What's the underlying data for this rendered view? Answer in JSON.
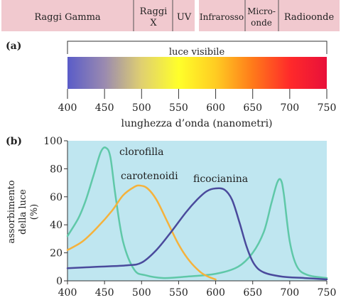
{
  "spectrum_bar": {
    "segments": [
      {
        "lines": [
          "Raggi Gamma"
        ]
      },
      {
        "lines": [
          "Raggi",
          "X"
        ]
      },
      {
        "lines": [
          "UV"
        ]
      },
      {
        "lines": [
          "Infrarosso"
        ]
      },
      {
        "lines": [
          "Micro-",
          "onde"
        ]
      },
      {
        "lines": [
          "Radioonde"
        ]
      }
    ],
    "fill_color": "#f1c9cf"
  },
  "panel_a": {
    "label": "(a)",
    "visible_label": "luce visibile",
    "axis_title": "lunghezza d’onda (nanometri)",
    "tick_labels": [
      "400",
      "450",
      "500",
      "550",
      "600",
      "650",
      "700",
      "750"
    ],
    "gradient_colors": [
      "#5a5cc8",
      "#9a8ab0",
      "#e0d070",
      "#ffff2a",
      "#ffcc22",
      "#ff7a1a",
      "#ff2a2a",
      "#e8103a"
    ]
  },
  "panel_b": {
    "label": "(b)",
    "y_axis_title_lines": [
      "assorbimento",
      "della luce",
      "(%)"
    ],
    "plot_background": "#bfe6f0"
  },
  "chart_data": {
    "type": "line",
    "xlim": [
      400,
      750
    ],
    "ylim": [
      0,
      100
    ],
    "x_ticks": [
      400,
      450,
      500,
      550,
      600,
      650,
      700,
      750
    ],
    "y_ticks": [
      0,
      20,
      40,
      60,
      80,
      100
    ],
    "series": [
      {
        "name": "clorofilla",
        "color": "#5fc8a8",
        "points": [
          [
            400,
            32
          ],
          [
            415,
            45
          ],
          [
            425,
            58
          ],
          [
            435,
            75
          ],
          [
            445,
            92
          ],
          [
            452,
            95
          ],
          [
            458,
            88
          ],
          [
            465,
            60
          ],
          [
            475,
            28
          ],
          [
            490,
            8
          ],
          [
            505,
            4
          ],
          [
            530,
            2
          ],
          [
            560,
            3
          ],
          [
            600,
            5
          ],
          [
            630,
            10
          ],
          [
            650,
            20
          ],
          [
            665,
            35
          ],
          [
            675,
            55
          ],
          [
            683,
            70
          ],
          [
            688,
            72
          ],
          [
            692,
            62
          ],
          [
            700,
            28
          ],
          [
            710,
            10
          ],
          [
            725,
            4
          ],
          [
            750,
            2
          ]
        ]
      },
      {
        "name": "carotenoidi",
        "color": "#f5b23c",
        "points": [
          [
            400,
            22
          ],
          [
            420,
            28
          ],
          [
            440,
            38
          ],
          [
            460,
            50
          ],
          [
            475,
            61
          ],
          [
            490,
            67
          ],
          [
            498,
            68
          ],
          [
            508,
            66
          ],
          [
            520,
            58
          ],
          [
            535,
            42
          ],
          [
            550,
            26
          ],
          [
            565,
            14
          ],
          [
            580,
            6
          ],
          [
            590,
            3
          ],
          [
            600,
            1
          ]
        ]
      },
      {
        "name": "ficocianina",
        "color": "#4a4a9c",
        "points": [
          [
            400,
            9
          ],
          [
            440,
            10
          ],
          [
            480,
            11
          ],
          [
            500,
            13
          ],
          [
            520,
            22
          ],
          [
            540,
            35
          ],
          [
            560,
            49
          ],
          [
            575,
            58
          ],
          [
            588,
            64
          ],
          [
            600,
            66
          ],
          [
            612,
            65
          ],
          [
            622,
            58
          ],
          [
            632,
            42
          ],
          [
            642,
            24
          ],
          [
            652,
            12
          ],
          [
            665,
            6
          ],
          [
            690,
            3
          ],
          [
            720,
            2
          ],
          [
            750,
            1
          ]
        ]
      }
    ]
  }
}
